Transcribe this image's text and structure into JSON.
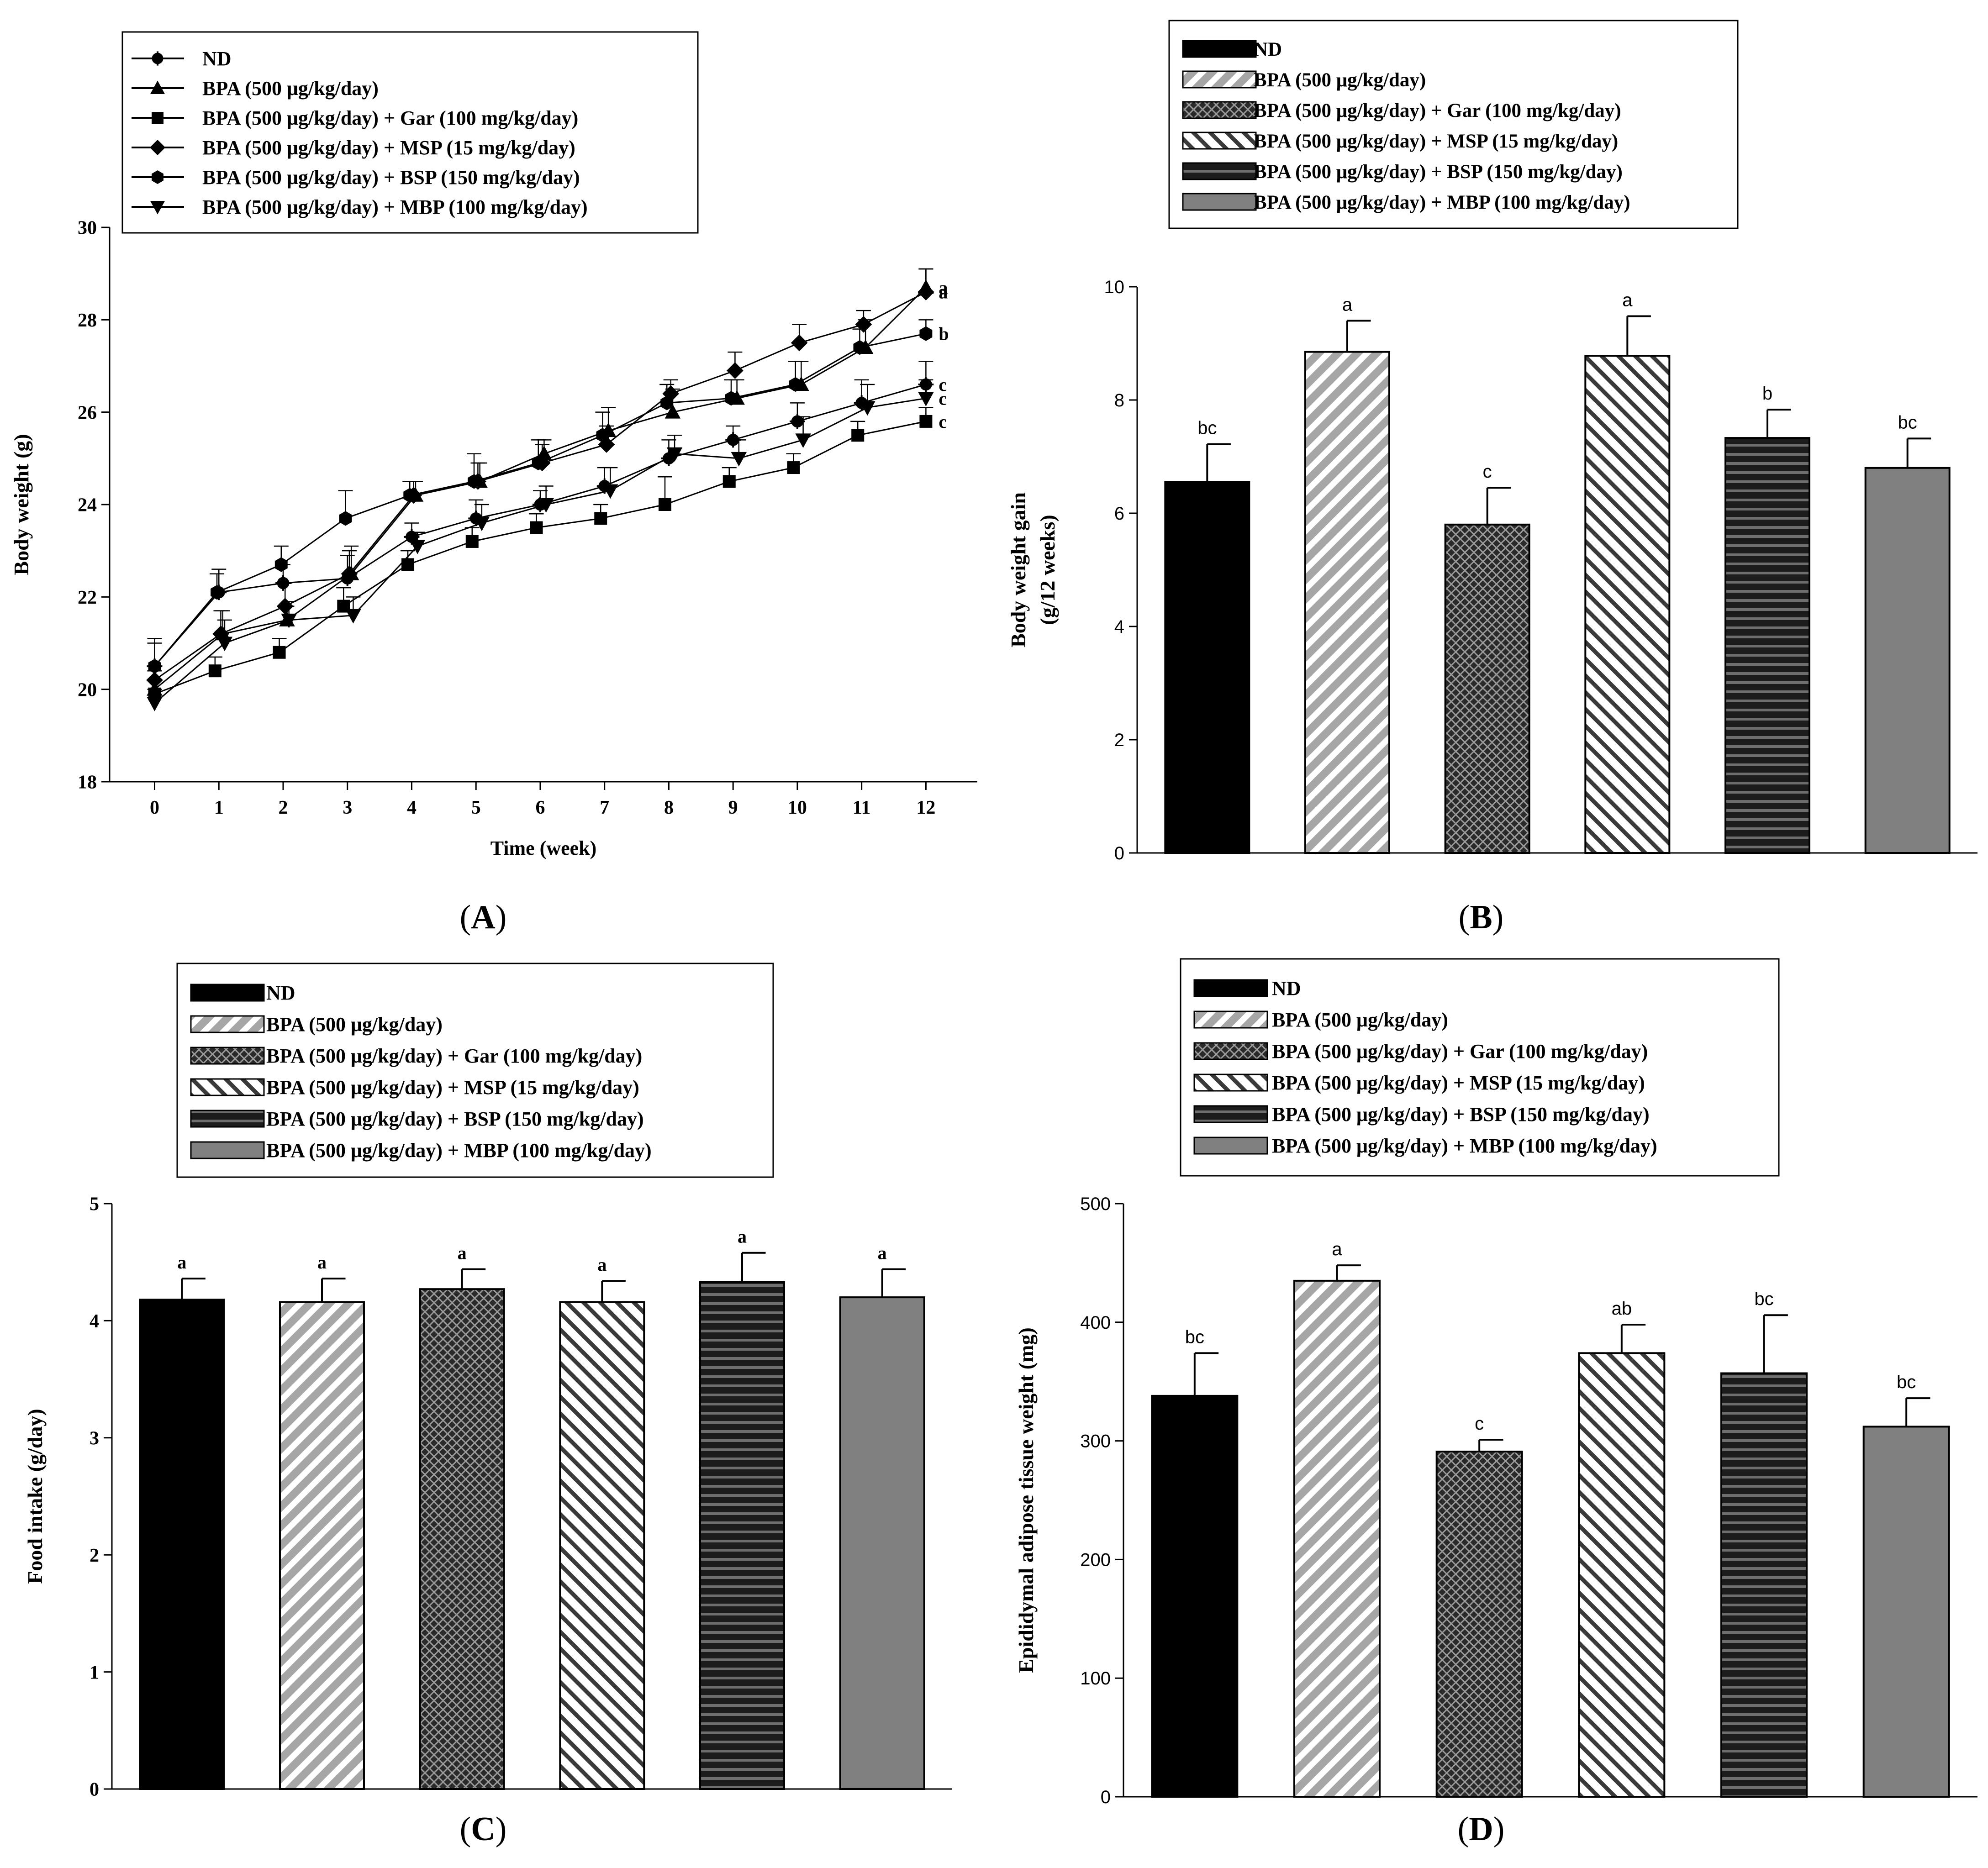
{
  "panels": {
    "A": {
      "label_open": "(",
      "label_letter": "A",
      "label_close": ")"
    },
    "B": {
      "label_open": "(",
      "label_letter": "B",
      "label_close": ")"
    },
    "C": {
      "label_open": "(",
      "label_letter": "C",
      "label_close": ")"
    },
    "D": {
      "label_open": "(",
      "label_letter": "D",
      "label_close": ")"
    }
  },
  "colors": {
    "ink": "#000000",
    "gray": "#808080",
    "hatch_gray": "#a6a6a6",
    "dark": "#1a1a1a"
  },
  "chart_data": [
    {
      "id": "A",
      "type": "line",
      "title": "",
      "xlabel": "Time (week)",
      "ylabel": "Body weight (g)",
      "xlim": [
        -0.7,
        12.8
      ],
      "ylim": [
        18,
        30
      ],
      "xticks": [
        "0",
        "1",
        "2",
        "3",
        "4",
        "5",
        "6",
        "7",
        "8",
        "9",
        "10",
        "11",
        "12"
      ],
      "yticks": [
        "18",
        "20",
        "22",
        "24",
        "26",
        "28",
        "30"
      ],
      "x": [
        0,
        1,
        2,
        3,
        4,
        5,
        6,
        7,
        8,
        9,
        10,
        11,
        12
      ],
      "series": [
        {
          "name": "ND",
          "marker": "plus",
          "values": [
            20.5,
            22.1,
            22.3,
            22.4,
            23.3,
            23.7,
            24.0,
            24.4,
            25.0,
            25.4,
            25.8,
            26.2,
            26.6
          ],
          "err": [
            0.6,
            0.5,
            0.4,
            0.5,
            0.3,
            0.4,
            0.3,
            0.4,
            0.4,
            0.3,
            0.4,
            0.5,
            0.5
          ],
          "sig": "c"
        },
        {
          "name": "BPA (500 μg/kg/day)",
          "marker": "triangle",
          "values": [
            20.0,
            21.2,
            21.5,
            22.5,
            24.2,
            24.5,
            25.1,
            25.6,
            26.0,
            26.3,
            26.6,
            27.4,
            28.7
          ],
          "err": [
            0.4,
            0.5,
            0.3,
            0.6,
            0.3,
            0.4,
            0.3,
            0.5,
            0.5,
            0.4,
            0.5,
            0.6,
            0.4
          ],
          "sig": "a"
        },
        {
          "name": "BPA (500 μg/kg/day) + Gar (100 mg/kg/day)",
          "marker": "square",
          "values": [
            19.9,
            20.4,
            20.8,
            21.8,
            22.7,
            23.2,
            23.5,
            23.7,
            24.0,
            24.5,
            24.8,
            25.5,
            25.8
          ],
          "err": [
            0.3,
            0.3,
            0.3,
            0.4,
            0.3,
            0.3,
            0.3,
            0.3,
            0.6,
            0.3,
            0.3,
            0.3,
            0.3
          ],
          "sig": "c"
        },
        {
          "name": "BPA (500 μg/kg/day) + MSP (15 mg/kg/day)",
          "marker": "diamond",
          "values": [
            20.2,
            21.2,
            21.8,
            22.5,
            24.2,
            24.5,
            24.9,
            25.3,
            26.4,
            26.9,
            27.5,
            27.9,
            28.6
          ],
          "err": [
            0.3,
            0.5,
            0.5,
            0.5,
            0.3,
            0.4,
            0.4,
            0.4,
            0.3,
            0.4,
            0.4,
            0.3,
            0.5
          ],
          "sig": "a"
        },
        {
          "name": "BPA (500 μg/kg/day) + BSP (150 mg/kg/day)",
          "marker": "hexagon",
          "values": [
            20.5,
            22.1,
            22.7,
            23.7,
            24.2,
            24.5,
            24.9,
            25.5,
            26.2,
            26.3,
            26.6,
            27.4,
            27.7
          ],
          "err": [
            0.5,
            0.4,
            0.4,
            0.6,
            0.3,
            0.6,
            0.5,
            0.5,
            0.4,
            0.4,
            0.5,
            0.4,
            0.3
          ],
          "sig": "b"
        },
        {
          "name": "BPA (500 μg/kg/day) + MBP (100 mg/kg/day)",
          "marker": "triangle-down",
          "values": [
            19.7,
            21.0,
            21.5,
            21.6,
            23.1,
            23.6,
            24.0,
            24.3,
            25.1,
            25.0,
            25.4,
            26.1,
            26.3
          ],
          "err": [
            0.3,
            0.5,
            0.4,
            0.4,
            0.3,
            0.4,
            0.4,
            0.5,
            0.4,
            0.4,
            0.5,
            0.5,
            0.4
          ],
          "sig": "c"
        }
      ]
    },
    {
      "id": "B",
      "type": "bar",
      "title": "",
      "xlabel": "",
      "ylabel": "Body weight gain",
      "ylabel2": "(g/12 weeks)",
      "ylim": [
        0,
        10
      ],
      "yticks": [
        "0",
        "2",
        "4",
        "6",
        "8",
        "10"
      ],
      "categories": [
        "ND",
        "BPA (500 μg/kg/day)",
        "BPA (500 μg/kg/day) + Gar (100 mg/kg/day)",
        "BPA (500 μg/kg/day) + MSP (15 mg/kg/day)",
        "BPA (500 μg/kg/day) + BSP (150 mg/kg/day)",
        "BPA (500 μg/kg/day) + MBP (100 mg/kg/day)"
      ],
      "values": [
        6.55,
        8.85,
        5.8,
        8.78,
        7.33,
        6.8
      ],
      "err": [
        0.67,
        0.55,
        0.65,
        0.7,
        0.5,
        0.52
      ],
      "sig": [
        "bc",
        "a",
        "c",
        "a",
        "b",
        "bc"
      ]
    },
    {
      "id": "C",
      "type": "bar",
      "title": "",
      "xlabel": "",
      "ylabel": "Food intake (g/day)",
      "ylim": [
        0,
        5
      ],
      "yticks": [
        "0",
        "1",
        "2",
        "3",
        "4",
        "5"
      ],
      "categories": [
        "ND",
        "BPA (500 μg/kg/day)",
        "BPA (500 μg/kg/day) + Gar (100 mg/kg/day)",
        "BPA (500 μg/kg/day) + MSP (15 mg/kg/day)",
        "BPA (500 μg/kg/day) + BSP (150 mg/kg/day)",
        "BPA (500 μg/kg/day) + MBP (100 mg/kg/day)"
      ],
      "values": [
        4.18,
        4.16,
        4.27,
        4.16,
        4.33,
        4.2
      ],
      "err": [
        0.18,
        0.2,
        0.17,
        0.18,
        0.25,
        0.24
      ],
      "sig": [
        "a",
        "a",
        "a",
        "a",
        "a",
        "a"
      ]
    },
    {
      "id": "D",
      "type": "bar",
      "title": "",
      "xlabel": "",
      "ylabel": "Epididymal adipose tissue weight (mg)",
      "ylim": [
        0,
        500
      ],
      "yticks": [
        "0",
        "100",
        "200",
        "300",
        "400",
        "500"
      ],
      "categories": [
        "ND",
        "BPA (500 μg/kg/day)",
        "BPA (500 μg/kg/day) + Gar (100 mg/kg/day)",
        "BPA (500 μg/kg/day) + MSP (15 mg/kg/day)",
        "BPA (500 μg/kg/day) + BSP (150 mg/kg/day)",
        "BPA (500 μg/kg/day) + MBP (100 mg/kg/day)"
      ],
      "values": [
        338,
        435,
        291,
        374,
        357,
        312
      ],
      "err": [
        36,
        13,
        10,
        24,
        49,
        24
      ],
      "sig": [
        "bc",
        "a",
        "c",
        "ab",
        "bc",
        "bc"
      ]
    }
  ]
}
